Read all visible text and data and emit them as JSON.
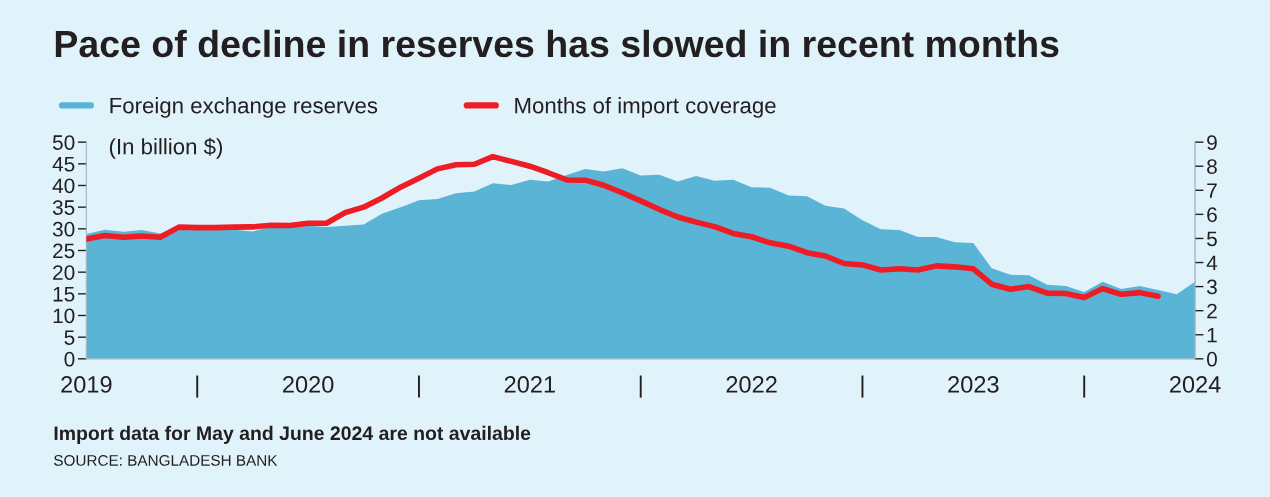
{
  "chart_data": {
    "type": "area",
    "title": "Pace of decline in reserves has slowed in recent months",
    "ylabel": "(In billion $)",
    "x": [
      2019.0,
      2019.083,
      2019.167,
      2019.25,
      2019.333,
      2019.417,
      2019.5,
      2019.583,
      2019.667,
      2019.75,
      2019.833,
      2019.917,
      2020.0,
      2020.083,
      2020.167,
      2020.25,
      2020.333,
      2020.417,
      2020.5,
      2020.583,
      2020.667,
      2020.75,
      2020.833,
      2020.917,
      2021.0,
      2021.083,
      2021.167,
      2021.25,
      2021.333,
      2021.417,
      2021.5,
      2021.583,
      2021.667,
      2021.75,
      2021.833,
      2021.917,
      2022.0,
      2022.083,
      2022.167,
      2022.25,
      2022.333,
      2022.417,
      2022.5,
      2022.583,
      2022.667,
      2022.75,
      2022.833,
      2022.917,
      2023.0,
      2023.083,
      2023.167,
      2023.25,
      2023.333,
      2023.417,
      2023.5,
      2023.583,
      2023.667,
      2023.75,
      2023.833,
      2023.917,
      2024.0
    ],
    "series": [
      {
        "name": "Foreign exchange reserves",
        "color": "#5ab4d6",
        "values": [
          28.8,
          29.8,
          29.3,
          29.7,
          28.9,
          30.5,
          29.8,
          30.5,
          29.8,
          29.4,
          30.5,
          30.3,
          30.7,
          30.4,
          30.7,
          31.0,
          33.5,
          35.0,
          36.6,
          36.9,
          38.2,
          38.6,
          40.5,
          40.1,
          41.3,
          40.9,
          42.4,
          43.8,
          43.2,
          44.0,
          42.3,
          42.5,
          40.9,
          42.2,
          41.1,
          41.3,
          39.6,
          39.5,
          37.7,
          37.5,
          35.3,
          34.7,
          32.0,
          29.9,
          29.7,
          28.1,
          28.1,
          26.9,
          26.7,
          20.9,
          19.4,
          19.3,
          17.1,
          16.8,
          15.4,
          17.8,
          16.1,
          16.8,
          15.9,
          14.9,
          17.8
        ]
      },
      {
        "name": "Months of import coverage",
        "type": "line",
        "axis": "y2",
        "color": "#ee1c25",
        "x": [
          2019.0,
          2019.083,
          2019.167,
          2019.25,
          2019.333,
          2019.417,
          2019.5,
          2019.583,
          2019.667,
          2019.75,
          2019.833,
          2019.917,
          2020.0,
          2020.083,
          2020.167,
          2020.25,
          2020.333,
          2020.417,
          2020.5,
          2020.583,
          2020.667,
          2020.75,
          2020.833,
          2020.917,
          2021.0,
          2021.083,
          2021.167,
          2021.25,
          2021.333,
          2021.417,
          2021.5,
          2021.583,
          2021.667,
          2021.75,
          2021.833,
          2021.917,
          2022.0,
          2022.083,
          2022.167,
          2022.25,
          2022.333,
          2022.417,
          2022.5,
          2022.583,
          2022.667,
          2022.75,
          2022.833,
          2022.917,
          2023.0,
          2023.083,
          2023.167,
          2023.25,
          2023.333,
          2023.417,
          2023.5,
          2023.583,
          2023.667,
          2023.75,
          2023.833
        ],
        "values": [
          4.98,
          5.12,
          5.05,
          5.1,
          5.05,
          5.47,
          5.45,
          5.45,
          5.47,
          5.48,
          5.55,
          5.54,
          5.63,
          5.63,
          6.07,
          6.3,
          6.68,
          7.13,
          7.5,
          7.89,
          8.06,
          8.08,
          8.4,
          8.2,
          8.0,
          7.73,
          7.43,
          7.42,
          7.21,
          6.9,
          6.56,
          6.21,
          5.89,
          5.68,
          5.49,
          5.21,
          5.07,
          4.82,
          4.68,
          4.41,
          4.27,
          3.96,
          3.9,
          3.69,
          3.74,
          3.69,
          3.86,
          3.82,
          3.74,
          3.1,
          2.89,
          3.0,
          2.73,
          2.71,
          2.55,
          2.92,
          2.68,
          2.75,
          2.6
        ]
      }
    ],
    "xlim": [
      2019,
      2024
    ],
    "xticks": [
      {
        "value": 2019,
        "label": "2019"
      },
      {
        "value": 2019.5,
        "label": "|"
      },
      {
        "value": 2020,
        "label": "2020"
      },
      {
        "value": 2020.5,
        "label": "|"
      },
      {
        "value": 2021,
        "label": "2021"
      },
      {
        "value": 2021.5,
        "label": "|"
      },
      {
        "value": 2022,
        "label": "2022"
      },
      {
        "value": 2022.5,
        "label": "|"
      },
      {
        "value": 2023,
        "label": "2023"
      },
      {
        "value": 2023.5,
        "label": "|"
      },
      {
        "value": 2024,
        "label": "2024"
      }
    ],
    "ylim": [
      0,
      50
    ],
    "yticks": [
      0,
      5,
      10,
      15,
      20,
      25,
      30,
      35,
      40,
      45,
      50
    ],
    "y2lim": [
      0,
      9
    ],
    "y2ticks": [
      0,
      1,
      2,
      3,
      4,
      5,
      6,
      7,
      8,
      9
    ],
    "grid": false,
    "legend": "top left",
    "annotations": [
      "Import data for May and June 2024 are not available",
      "SOURCE: BANGLADESH BANK"
    ]
  }
}
